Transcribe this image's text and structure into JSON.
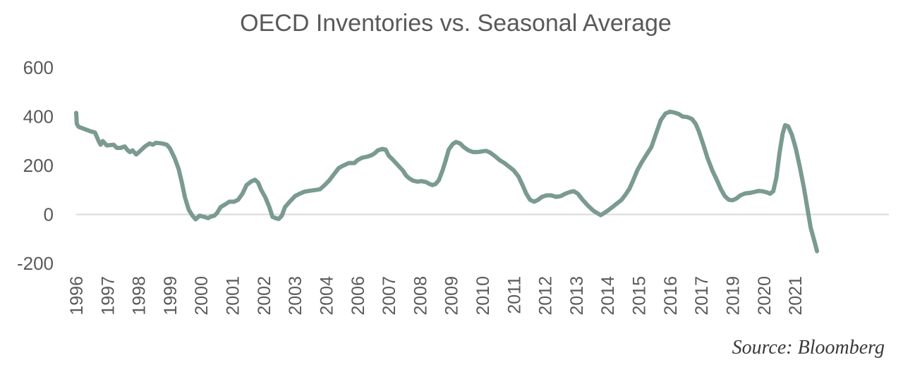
{
  "chart_data": {
    "type": "line",
    "title": "OECD Inventories vs. Seasonal Average",
    "xlabel": "",
    "ylabel": "",
    "ylim": [
      -200,
      600
    ],
    "yticks": [
      600,
      400,
      200,
      0,
      -200
    ],
    "xlim": [
      1996.0,
      2022.0
    ],
    "x_tick_labels": [
      {
        "x": 1996.0,
        "label": "1996"
      },
      {
        "x": 1997.0,
        "label": "1997"
      },
      {
        "x": 1998.0,
        "label": "1998"
      },
      {
        "x": 1999.0,
        "label": "1999"
      },
      {
        "x": 2000.0,
        "label": "2000"
      },
      {
        "x": 2001.0,
        "label": "2001"
      },
      {
        "x": 2002.0,
        "label": "2002"
      },
      {
        "x": 2003.0,
        "label": "2003"
      },
      {
        "x": 2004.0,
        "label": "2004"
      },
      {
        "x": 2005.0,
        "label": "2006"
      },
      {
        "x": 2006.0,
        "label": "2007"
      },
      {
        "x": 2007.0,
        "label": "2008"
      },
      {
        "x": 2008.0,
        "label": "2009"
      },
      {
        "x": 2009.0,
        "label": "2010"
      },
      {
        "x": 2010.0,
        "label": "2011"
      },
      {
        "x": 2011.0,
        "label": "2012"
      },
      {
        "x": 2012.0,
        "label": "2013"
      },
      {
        "x": 2013.0,
        "label": "2014"
      },
      {
        "x": 2014.0,
        "label": "2015"
      },
      {
        "x": 2015.0,
        "label": "2016"
      },
      {
        "x": 2016.0,
        "label": "2017"
      },
      {
        "x": 2017.0,
        "label": "2019"
      },
      {
        "x": 2018.0,
        "label": "2020"
      },
      {
        "x": 2019.0,
        "label": "2021"
      }
    ],
    "grid": false,
    "zero_line": true,
    "legend": "none",
    "series": [
      {
        "color": "#7a9a92",
        "points": [
          [
            1996.0,
            415
          ],
          [
            1996.02,
            370
          ],
          [
            1996.08,
            358
          ],
          [
            1996.25,
            350
          ],
          [
            1996.45,
            340
          ],
          [
            1996.6,
            335
          ],
          [
            1996.72,
            300
          ],
          [
            1996.78,
            285
          ],
          [
            1996.85,
            300
          ],
          [
            1996.98,
            282
          ],
          [
            1997.2,
            285
          ],
          [
            1997.3,
            272
          ],
          [
            1997.42,
            272
          ],
          [
            1997.55,
            278
          ],
          [
            1997.65,
            262
          ],
          [
            1997.72,
            255
          ],
          [
            1997.8,
            262
          ],
          [
            1997.92,
            245
          ],
          [
            1998.05,
            260
          ],
          [
            1998.2,
            278
          ],
          [
            1998.35,
            290
          ],
          [
            1998.45,
            285
          ],
          [
            1998.55,
            293
          ],
          [
            1998.75,
            290
          ],
          [
            1998.9,
            285
          ],
          [
            1999.0,
            270
          ],
          [
            1999.15,
            230
          ],
          [
            1999.28,
            185
          ],
          [
            1999.38,
            130
          ],
          [
            1999.48,
            70
          ],
          [
            1999.6,
            20
          ],
          [
            1999.72,
            -5
          ],
          [
            1999.82,
            -20
          ],
          [
            1999.95,
            -5
          ],
          [
            2000.1,
            -10
          ],
          [
            2000.22,
            -15
          ],
          [
            2000.32,
            -8
          ],
          [
            2000.42,
            -5
          ],
          [
            2000.5,
            5
          ],
          [
            2000.62,
            30
          ],
          [
            2000.75,
            40
          ],
          [
            2000.9,
            52
          ],
          [
            2001.05,
            52
          ],
          [
            2001.18,
            60
          ],
          [
            2001.32,
            85
          ],
          [
            2001.45,
            120
          ],
          [
            2001.6,
            135
          ],
          [
            2001.72,
            142
          ],
          [
            2001.82,
            130
          ],
          [
            2001.92,
            100
          ],
          [
            2002.05,
            70
          ],
          [
            2002.18,
            30
          ],
          [
            2002.28,
            -10
          ],
          [
            2002.38,
            -15
          ],
          [
            2002.48,
            -18
          ],
          [
            2002.58,
            -5
          ],
          [
            2002.68,
            30
          ],
          [
            2002.85,
            55
          ],
          [
            2003.0,
            75
          ],
          [
            2003.15,
            85
          ],
          [
            2003.3,
            93
          ],
          [
            2003.48,
            97
          ],
          [
            2003.65,
            100
          ],
          [
            2003.8,
            103
          ],
          [
            2003.95,
            120
          ],
          [
            2004.1,
            140
          ],
          [
            2004.25,
            165
          ],
          [
            2004.4,
            190
          ],
          [
            2004.55,
            200
          ],
          [
            2004.72,
            210
          ],
          [
            2004.9,
            210
          ],
          [
            2005.0,
            222
          ],
          [
            2005.15,
            232
          ],
          [
            2005.3,
            236
          ],
          [
            2005.45,
            242
          ],
          [
            2005.55,
            250
          ],
          [
            2005.65,
            262
          ],
          [
            2005.8,
            268
          ],
          [
            2005.9,
            265
          ],
          [
            2006.0,
            240
          ],
          [
            2006.12,
            225
          ],
          [
            2006.3,
            200
          ],
          [
            2006.45,
            180
          ],
          [
            2006.55,
            160
          ],
          [
            2006.65,
            148
          ],
          [
            2006.78,
            138
          ],
          [
            2006.92,
            134
          ],
          [
            2007.05,
            136
          ],
          [
            2007.2,
            132
          ],
          [
            2007.3,
            125
          ],
          [
            2007.4,
            120
          ],
          [
            2007.5,
            125
          ],
          [
            2007.6,
            140
          ],
          [
            2007.72,
            180
          ],
          [
            2007.82,
            220
          ],
          [
            2007.92,
            265
          ],
          [
            2008.05,
            288
          ],
          [
            2008.15,
            296
          ],
          [
            2008.28,
            290
          ],
          [
            2008.4,
            275
          ],
          [
            2008.55,
            262
          ],
          [
            2008.7,
            255
          ],
          [
            2008.85,
            255
          ],
          [
            2009.0,
            258
          ],
          [
            2009.12,
            260
          ],
          [
            2009.25,
            252
          ],
          [
            2009.4,
            238
          ],
          [
            2009.55,
            222
          ],
          [
            2009.7,
            210
          ],
          [
            2009.85,
            195
          ],
          [
            2010.0,
            180
          ],
          [
            2010.15,
            155
          ],
          [
            2010.28,
            120
          ],
          [
            2010.4,
            85
          ],
          [
            2010.52,
            60
          ],
          [
            2010.65,
            52
          ],
          [
            2010.78,
            60
          ],
          [
            2010.9,
            72
          ],
          [
            2011.05,
            78
          ],
          [
            2011.2,
            78
          ],
          [
            2011.35,
            72
          ],
          [
            2011.5,
            75
          ],
          [
            2011.65,
            85
          ],
          [
            2011.8,
            92
          ],
          [
            2011.92,
            95
          ],
          [
            2012.05,
            85
          ],
          [
            2012.2,
            60
          ],
          [
            2012.38,
            35
          ],
          [
            2012.55,
            15
          ],
          [
            2012.68,
            5
          ],
          [
            2012.78,
            -3
          ],
          [
            2012.88,
            5
          ],
          [
            2013.0,
            15
          ],
          [
            2013.15,
            30
          ],
          [
            2013.3,
            45
          ],
          [
            2013.45,
            60
          ],
          [
            2013.58,
            82
          ],
          [
            2013.7,
            105
          ],
          [
            2013.82,
            140
          ],
          [
            2013.95,
            180
          ],
          [
            2014.1,
            215
          ],
          [
            2014.25,
            245
          ],
          [
            2014.4,
            275
          ],
          [
            2014.55,
            330
          ],
          [
            2014.7,
            385
          ],
          [
            2014.85,
            412
          ],
          [
            2015.0,
            420
          ],
          [
            2015.15,
            416
          ],
          [
            2015.28,
            410
          ],
          [
            2015.4,
            400
          ],
          [
            2015.55,
            398
          ],
          [
            2015.7,
            390
          ],
          [
            2015.82,
            370
          ],
          [
            2015.92,
            340
          ],
          [
            2016.05,
            290
          ],
          [
            2016.2,
            230
          ],
          [
            2016.35,
            180
          ],
          [
            2016.5,
            140
          ],
          [
            2016.62,
            105
          ],
          [
            2016.75,
            75
          ],
          [
            2016.88,
            60
          ],
          [
            2017.0,
            58
          ],
          [
            2017.12,
            65
          ],
          [
            2017.25,
            78
          ],
          [
            2017.4,
            86
          ],
          [
            2017.55,
            88
          ],
          [
            2017.7,
            92
          ],
          [
            2017.82,
            96
          ],
          [
            2017.95,
            95
          ],
          [
            2018.1,
            90
          ],
          [
            2018.2,
            85
          ],
          [
            2018.3,
            95
          ],
          [
            2018.4,
            150
          ],
          [
            2018.5,
            250
          ],
          [
            2018.6,
            330
          ],
          [
            2018.68,
            365
          ],
          [
            2018.78,
            360
          ],
          [
            2018.9,
            325
          ],
          [
            2019.02,
            270
          ],
          [
            2019.15,
            195
          ],
          [
            2019.28,
            110
          ],
          [
            2019.4,
            20
          ],
          [
            2019.5,
            -55
          ],
          [
            2019.62,
            -110
          ],
          [
            2019.7,
            -150
          ]
        ]
      }
    ],
    "source": "Source: Bloomberg"
  }
}
